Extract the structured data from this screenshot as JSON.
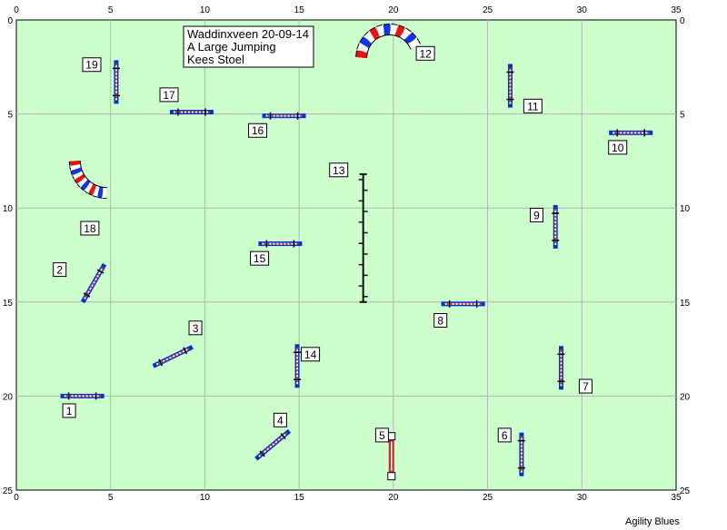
{
  "header": {
    "title": "Waddinxveen 20-09-14",
    "class": "A Large Jumping",
    "judge": "Kees Stoel"
  },
  "footer": {
    "credit": "Agility Blues"
  },
  "colors": {
    "field": "#ccffcc",
    "grid": "#b4b4b4",
    "bar": "#0033cc",
    "pole_red": "#dd2222",
    "tunnel_red": "#ee1111",
    "tunnel_blue": "#1133ee",
    "weave": "#111111"
  },
  "axes": {
    "x_range": [
      0,
      35
    ],
    "y_range": [
      0,
      25
    ],
    "x_ticks": [
      "0",
      "5",
      "10",
      "15",
      "20",
      "25",
      "30",
      "35"
    ],
    "y_ticks": [
      "0",
      "5",
      "10",
      "15",
      "20",
      "25"
    ],
    "grid": true
  },
  "obstacles": [
    {
      "number": "1",
      "type": "jump",
      "x": 3.5,
      "y": 20.0,
      "angle": 90
    },
    {
      "number": "2",
      "type": "jump",
      "x": 4.1,
      "y": 14.0,
      "angle": 30
    },
    {
      "number": "3",
      "type": "jump",
      "x": 8.3,
      "y": 17.9,
      "angle": 64
    },
    {
      "number": "4",
      "type": "jump",
      "x": 13.6,
      "y": 22.6,
      "angle": 50
    },
    {
      "number": "5",
      "type": "tyre",
      "x": 19.9,
      "y": 23.2,
      "angle": 0
    },
    {
      "number": "6",
      "type": "jump",
      "x": 26.8,
      "y": 23.1,
      "angle": 0
    },
    {
      "number": "7",
      "type": "jump",
      "x": 28.9,
      "y": 18.5,
      "angle": 0
    },
    {
      "number": "8",
      "type": "jump",
      "x": 23.7,
      "y": 15.1,
      "angle": 90
    },
    {
      "number": "9",
      "type": "jump",
      "x": 28.6,
      "y": 11.0,
      "angle": 0
    },
    {
      "number": "10",
      "type": "jump",
      "x": 32.6,
      "y": 6.0,
      "angle": 90
    },
    {
      "number": "11",
      "type": "jump",
      "x": 26.2,
      "y": 3.5,
      "angle": 0
    },
    {
      "number": "12",
      "type": "tunnel",
      "x": 19.8,
      "y": 2.0,
      "radius": 1.5,
      "orientation": "arch-up"
    },
    {
      "number": "13",
      "type": "weave",
      "x": 18.4,
      "y": 8.2,
      "length": 6.8
    },
    {
      "number": "14",
      "type": "jump",
      "x": 14.9,
      "y": 18.4,
      "angle": 0
    },
    {
      "number": "15",
      "type": "jump",
      "x": 14.0,
      "y": 11.9,
      "angle": 90
    },
    {
      "number": "16",
      "type": "jump",
      "x": 14.2,
      "y": 5.1,
      "angle": 90
    },
    {
      "number": "17",
      "type": "jump",
      "x": 9.3,
      "y": 4.9,
      "angle": 90
    },
    {
      "number": "18",
      "type": "tunnel",
      "x": 3.1,
      "y": 7.5,
      "radius": 1.7,
      "orientation": "arch-down"
    },
    {
      "number": "19",
      "type": "jump",
      "x": 5.3,
      "y": 3.3,
      "angle": 0
    }
  ],
  "labels": [
    {
      "number": "1",
      "x": 2.8,
      "y": 20.8
    },
    {
      "number": "2",
      "x": 2.3,
      "y": 13.3
    },
    {
      "number": "3",
      "x": 9.5,
      "y": 16.4
    },
    {
      "number": "4",
      "x": 14.0,
      "y": 21.3
    },
    {
      "number": "5",
      "x": 19.4,
      "y": 22.1
    },
    {
      "number": "6",
      "x": 25.9,
      "y": 22.1
    },
    {
      "number": "7",
      "x": 30.2,
      "y": 19.5
    },
    {
      "number": "8",
      "x": 22.5,
      "y": 16.0
    },
    {
      "number": "9",
      "x": 27.6,
      "y": 10.4
    },
    {
      "number": "10",
      "x": 31.9,
      "y": 6.8
    },
    {
      "number": "11",
      "x": 27.4,
      "y": 4.6
    },
    {
      "number": "12",
      "x": 21.7,
      "y": 1.8
    },
    {
      "number": "13",
      "x": 17.1,
      "y": 8.0
    },
    {
      "number": "14",
      "x": 15.6,
      "y": 17.8
    },
    {
      "number": "15",
      "x": 12.9,
      "y": 12.7
    },
    {
      "number": "16",
      "x": 12.8,
      "y": 5.9
    },
    {
      "number": "17",
      "x": 8.1,
      "y": 4.0
    },
    {
      "number": "18",
      "x": 3.9,
      "y": 11.1
    },
    {
      "number": "19",
      "x": 4.0,
      "y": 2.4
    }
  ]
}
